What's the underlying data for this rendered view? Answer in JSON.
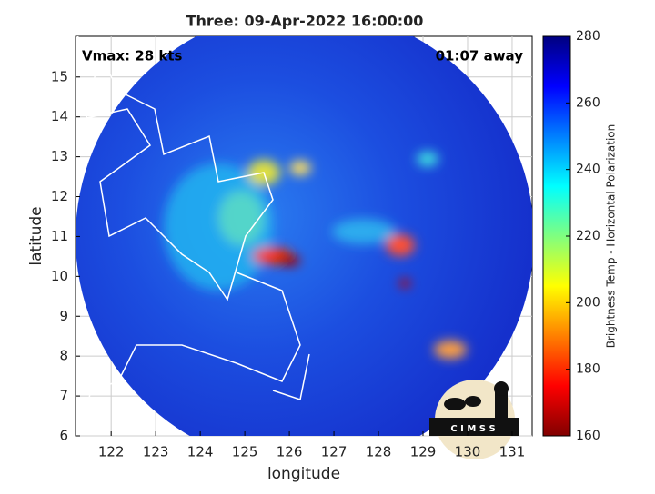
{
  "chart_data": {
    "type": "map",
    "title": "Three: 09-Apr-2022 16:00:00",
    "annotations": [
      "Vmax: 28 kts",
      "01:07 away"
    ],
    "x_label": "longitude",
    "y_label": "latitude",
    "xlim": [
      121.2,
      131.45
    ],
    "ylim": [
      6,
      16.02
    ],
    "xticks": [
      122,
      123,
      124,
      125,
      126,
      127,
      128,
      129,
      130,
      131
    ],
    "yticks": [
      6,
      7,
      8,
      9,
      10,
      11,
      12,
      13,
      14,
      15
    ],
    "grid": true,
    "colorbar": {
      "label": "Brightness Temp - Horizontal Polarization",
      "lim": [
        160,
        280
      ],
      "ticks": [
        160,
        180,
        200,
        220,
        240,
        260,
        280
      ]
    },
    "logo": "C I M S S"
  }
}
